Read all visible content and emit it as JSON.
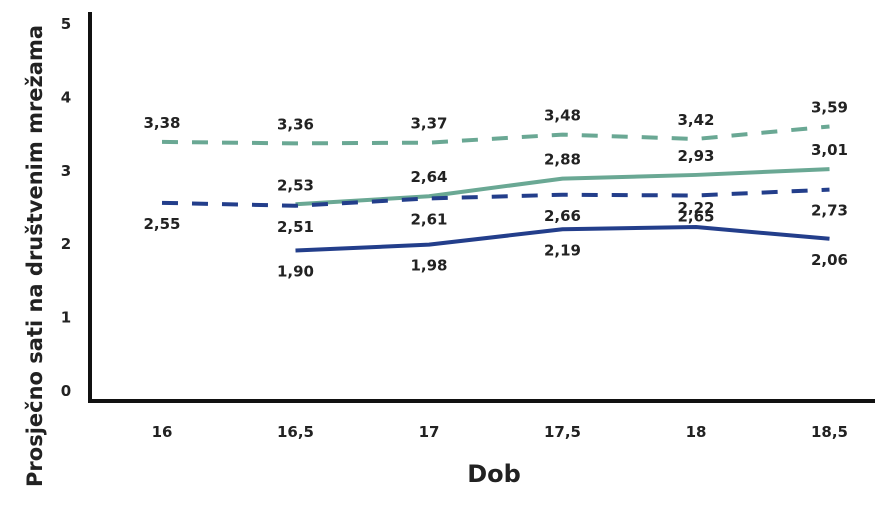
{
  "chart_data": {
    "type": "line",
    "xlabel": "Dob",
    "ylabel": "Prosječno sati na društvenim mrežama",
    "x": [
      16,
      16.5,
      17,
      17.5,
      18,
      18.5
    ],
    "x_tick_labels": [
      "16",
      "16,5",
      "17",
      "17,5",
      "18",
      "18,5"
    ],
    "y_tick_labels": [
      "0",
      "1",
      "2",
      "3",
      "4",
      "5"
    ],
    "ylim": [
      0,
      5
    ],
    "grid": false,
    "series": [
      {
        "style": "dashed",
        "color": "#6aa894",
        "values": [
          3.38,
          3.36,
          3.37,
          3.48,
          3.42,
          3.59
        ],
        "labels": [
          "3,38",
          "3,36",
          "3,37",
          "3,48",
          "3,42",
          "3,59"
        ]
      },
      {
        "style": "solid",
        "color": "#6aa894",
        "values": [
          null,
          2.53,
          2.64,
          2.88,
          2.93,
          3.01
        ],
        "labels": [
          null,
          "2,53",
          "2,64",
          "2,88",
          "2,93",
          "3,01"
        ]
      },
      {
        "style": "dashed",
        "color": "#233e8b",
        "values": [
          2.55,
          2.51,
          2.61,
          2.66,
          2.65,
          2.73
        ],
        "labels": [
          "2,55",
          "2,51",
          "2,61",
          "2,66",
          "2,65",
          "2,73"
        ]
      },
      {
        "style": "solid",
        "color": "#233e8b",
        "values": [
          null,
          1.9,
          1.98,
          2.19,
          2.22,
          2.06
        ],
        "labels": [
          null,
          "1,90",
          "1,98",
          "2,19",
          "2,22",
          "2,06"
        ]
      }
    ]
  }
}
